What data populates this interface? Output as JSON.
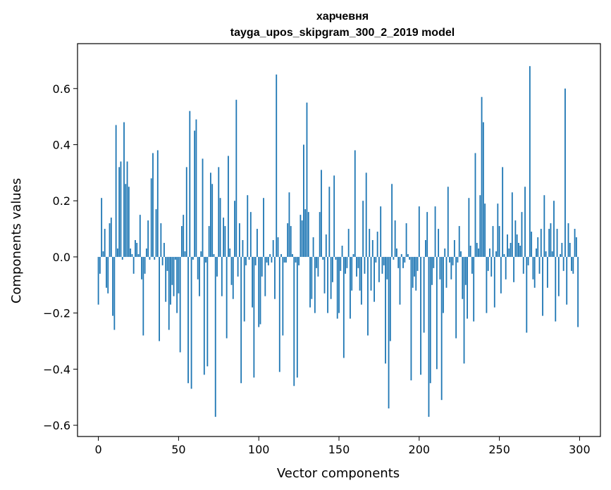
{
  "chart_data": {
    "type": "bar",
    "title": "харчевня",
    "subtitle": "tayga_upos_skipgram_300_2_2019 model",
    "xlabel": "Vector components",
    "ylabel": "Components values",
    "xlim": [
      -13,
      313
    ],
    "ylim": [
      -0.64,
      0.76
    ],
    "xticks": [
      0,
      50,
      100,
      150,
      200,
      250,
      300
    ],
    "yticks": [
      -0.6,
      -0.4,
      -0.2,
      0.0,
      0.2,
      0.4,
      0.6
    ],
    "xtick_labels": [
      "0",
      "50",
      "100",
      "150",
      "200",
      "250",
      "300"
    ],
    "ytick_labels": [
      "−0.6",
      "−0.4",
      "−0.2",
      "0.0",
      "0.2",
      "0.4",
      "0.6"
    ],
    "bar_color": "#1f77b4",
    "grid": false,
    "x": [
      0,
      1,
      2,
      3,
      4,
      5,
      6,
      7,
      8,
      9,
      10,
      11,
      12,
      13,
      14,
      15,
      16,
      17,
      18,
      19,
      20,
      21,
      22,
      23,
      24,
      25,
      26,
      27,
      28,
      29,
      30,
      31,
      32,
      33,
      34,
      35,
      36,
      37,
      38,
      39,
      40,
      41,
      42,
      43,
      44,
      45,
      46,
      47,
      48,
      49,
      50,
      51,
      52,
      53,
      54,
      55,
      56,
      57,
      58,
      59,
      60,
      61,
      62,
      63,
      64,
      65,
      66,
      67,
      68,
      69,
      70,
      71,
      72,
      73,
      74,
      75,
      76,
      77,
      78,
      79,
      80,
      81,
      82,
      83,
      84,
      85,
      86,
      87,
      88,
      89,
      90,
      91,
      92,
      93,
      94,
      95,
      96,
      97,
      98,
      99,
      100,
      101,
      102,
      103,
      104,
      105,
      106,
      107,
      108,
      109,
      110,
      111,
      112,
      113,
      114,
      115,
      116,
      117,
      118,
      119,
      120,
      121,
      122,
      123,
      124,
      125,
      126,
      127,
      128,
      129,
      130,
      131,
      132,
      133,
      134,
      135,
      136,
      137,
      138,
      139,
      140,
      141,
      142,
      143,
      144,
      145,
      146,
      147,
      148,
      149,
      150,
      151,
      152,
      153,
      154,
      155,
      156,
      157,
      158,
      159,
      160,
      161,
      162,
      163,
      164,
      165,
      166,
      167,
      168,
      169,
      170,
      171,
      172,
      173,
      174,
      175,
      176,
      177,
      178,
      179,
      180,
      181,
      182,
      183,
      184,
      185,
      186,
      187,
      188,
      189,
      190,
      191,
      192,
      193,
      194,
      195,
      196,
      197,
      198,
      199,
      200,
      201,
      202,
      203,
      204,
      205,
      206,
      207,
      208,
      209,
      210,
      211,
      212,
      213,
      214,
      215,
      216,
      217,
      218,
      219,
      220,
      221,
      222,
      223,
      224,
      225,
      226,
      227,
      228,
      229,
      230,
      231,
      232,
      233,
      234,
      235,
      236,
      237,
      238,
      239,
      240,
      241,
      242,
      243,
      244,
      245,
      246,
      247,
      248,
      249,
      250,
      251,
      252,
      253,
      254,
      255,
      256,
      257,
      258,
      259,
      260,
      261,
      262,
      263,
      264,
      265,
      266,
      267,
      268,
      269,
      270,
      271,
      272,
      273,
      274,
      275,
      276,
      277,
      278,
      279,
      280,
      281,
      282,
      283,
      284,
      285,
      286,
      287,
      288,
      289,
      290,
      291,
      292,
      293,
      294,
      295,
      296,
      297,
      298,
      299
    ],
    "values": [
      -0.17,
      -0.06,
      0.21,
      0.02,
      0.1,
      -0.11,
      -0.13,
      0.12,
      0.14,
      -0.21,
      -0.26,
      0.47,
      0.03,
      0.32,
      0.34,
      -0.01,
      0.48,
      0.26,
      0.34,
      0.25,
      0.03,
      0.01,
      -0.06,
      0.06,
      0.05,
      0.01,
      0.15,
      -0.08,
      -0.28,
      -0.06,
      0.03,
      0.13,
      -0.01,
      0.28,
      0.37,
      -0.01,
      0.17,
      0.38,
      -0.3,
      0.12,
      -0.03,
      0.05,
      -0.16,
      -0.05,
      -0.26,
      -0.17,
      -0.1,
      -0.14,
      -0.01,
      -0.2,
      -0.13,
      -0.34,
      0.11,
      0.15,
      0.02,
      0.32,
      -0.45,
      0.52,
      -0.47,
      -0.01,
      0.45,
      0.49,
      -0.08,
      -0.14,
      0.02,
      0.35,
      -0.42,
      -0.02,
      -0.39,
      0.11,
      0.3,
      0.26,
      0.01,
      -0.57,
      -0.07,
      0.32,
      0.21,
      -0.14,
      0.14,
      0.11,
      -0.29,
      0.36,
      0.03,
      -0.1,
      -0.15,
      0.2,
      0.56,
      -0.07,
      0.12,
      -0.45,
      0.06,
      -0.23,
      -0.03,
      0.22,
      -0.01,
      0.16,
      -0.18,
      -0.43,
      -0.03,
      0.1,
      -0.25,
      -0.24,
      -0.07,
      0.21,
      -0.14,
      -0.02,
      -0.03,
      0.01,
      -0.02,
      0.06,
      -0.15,
      0.65,
      0.07,
      -0.41,
      0.01,
      -0.28,
      -0.02,
      -0.02,
      0.12,
      0.23,
      0.11,
      0.01,
      -0.46,
      -0.02,
      -0.43,
      -0.03,
      0.15,
      0.13,
      0.4,
      0.17,
      0.55,
      0.16,
      -0.18,
      -0.15,
      0.07,
      -0.2,
      -0.04,
      -0.07,
      0.16,
      0.31,
      -0.01,
      -0.13,
      0.08,
      -0.2,
      0.25,
      -0.15,
      -0.09,
      0.29,
      -0.01,
      -0.22,
      -0.2,
      -0.05,
      0.04,
      -0.36,
      -0.06,
      -0.04,
      0.1,
      -0.22,
      -0.12,
      0.01,
      0.38,
      -0.07,
      -0.04,
      -0.12,
      -0.17,
      0.2,
      -0.06,
      0.3,
      -0.28,
      0.1,
      -0.12,
      0.06,
      -0.16,
      -0.02,
      0.09,
      -0.09,
      0.18,
      -0.06,
      -0.03,
      -0.38,
      -0.08,
      -0.54,
      -0.3,
      0.26,
      -0.01,
      0.13,
      0.03,
      -0.04,
      -0.17,
      0.01,
      -0.04,
      -0.02,
      0.12,
      0.01,
      -0.01,
      -0.44,
      -0.11,
      -0.07,
      -0.12,
      -0.05,
      0.18,
      -0.42,
      0.0,
      -0.27,
      0.06,
      0.16,
      -0.57,
      -0.45,
      -0.1,
      -0.04,
      0.18,
      -0.4,
      0.1,
      -0.08,
      -0.51,
      -0.2,
      0.03,
      -0.11,
      0.25,
      -0.02,
      -0.08,
      -0.03,
      0.06,
      -0.29,
      -0.02,
      0.11,
      0.02,
      -0.15,
      -0.38,
      -0.1,
      -0.22,
      0.21,
      0.04,
      -0.06,
      -0.23,
      0.37,
      0.05,
      0.03,
      0.22,
      0.57,
      0.48,
      0.19,
      -0.2,
      -0.05,
      0.03,
      -0.07,
      0.11,
      -0.18,
      0.02,
      0.19,
      0.11,
      -0.13,
      0.32,
      0.01,
      -0.08,
      0.08,
      0.03,
      0.05,
      0.23,
      -0.09,
      0.13,
      0.08,
      0.05,
      0.04,
      0.16,
      -0.06,
      0.25,
      -0.27,
      -0.03,
      0.68,
      0.09,
      -0.08,
      -0.11,
      0.03,
      0.07,
      -0.06,
      0.1,
      -0.21,
      0.22,
      0.02,
      -0.11,
      0.1,
      0.12,
      0.02,
      0.2,
      -0.23,
      0.1,
      -0.14,
      0.01,
      0.05,
      -0.05,
      0.6,
      -0.17,
      0.12,
      0.05,
      -0.05,
      -0.06,
      0.1,
      0.07,
      -0.25
    ]
  }
}
